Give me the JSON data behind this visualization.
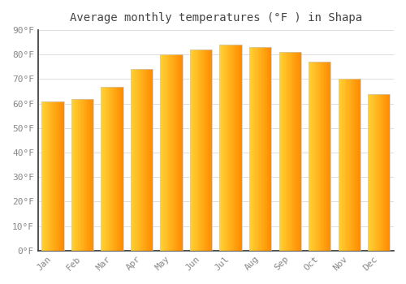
{
  "title": "Average monthly temperatures (°F ) in Shapa",
  "months": [
    "Jan",
    "Feb",
    "Mar",
    "Apr",
    "May",
    "Jun",
    "Jul",
    "Aug",
    "Sep",
    "Oct",
    "Nov",
    "Dec"
  ],
  "values": [
    61,
    62,
    67,
    74,
    80,
    82,
    84,
    83,
    81,
    77,
    70,
    64
  ],
  "bar_color_left": "#FFB300",
  "bar_color_right": "#FF8C00",
  "bar_color_mid": "#FFA500",
  "background_color": "#FFFFFF",
  "plot_bg_color": "#FFFFFF",
  "ylim": [
    0,
    90
  ],
  "yticks": [
    0,
    10,
    20,
    30,
    40,
    50,
    60,
    70,
    80,
    90
  ],
  "ytick_labels": [
    "0°F",
    "10°F",
    "20°F",
    "30°F",
    "40°F",
    "50°F",
    "60°F",
    "70°F",
    "80°F",
    "90°F"
  ],
  "title_fontsize": 10,
  "tick_fontsize": 8,
  "grid_color": "#DDDDDD",
  "spine_color": "#333333",
  "tick_label_color": "#888888",
  "font_family": "monospace"
}
